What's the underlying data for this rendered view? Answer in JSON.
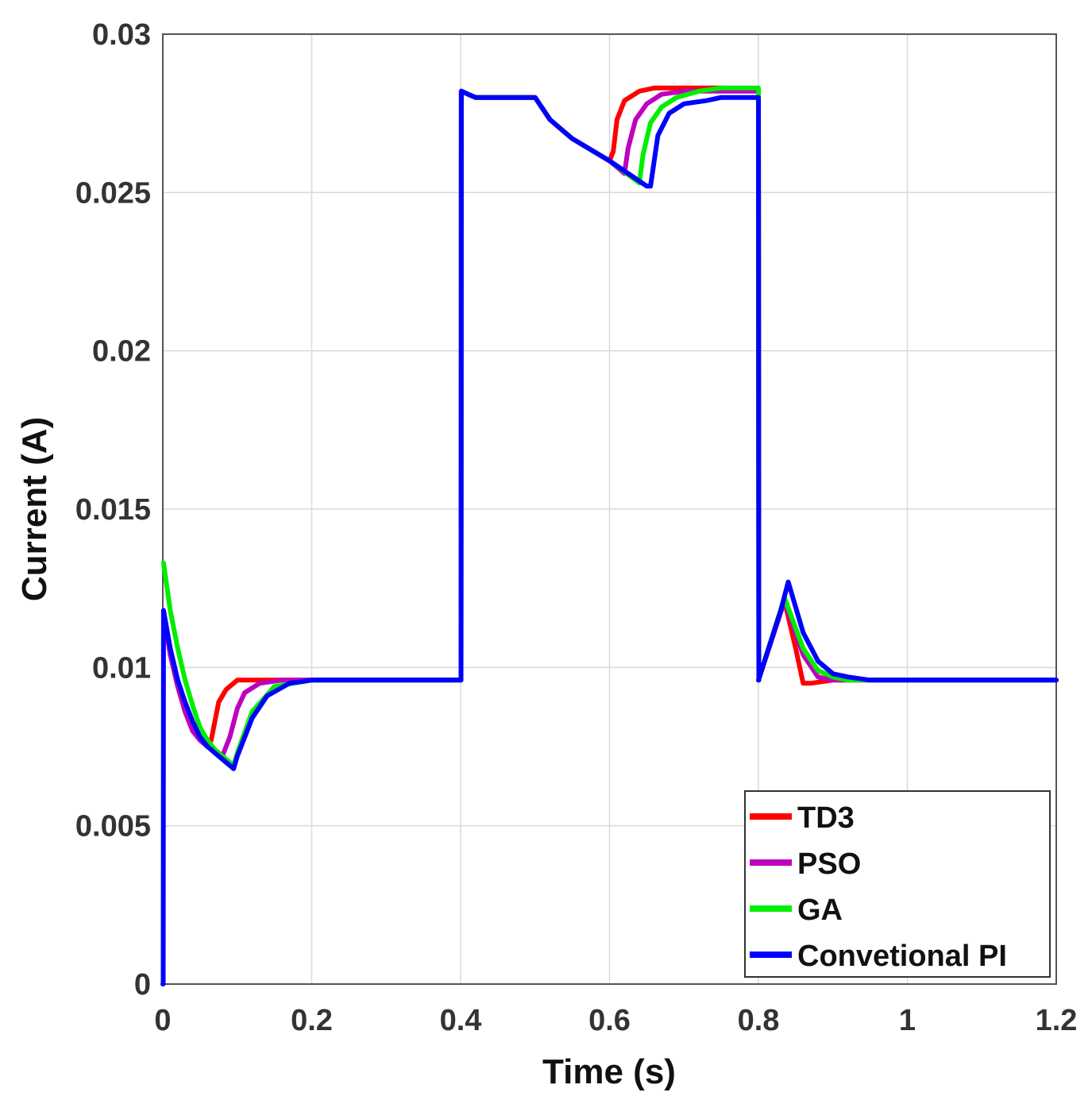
{
  "chart_data": {
    "type": "line",
    "title": "",
    "xlabel": "Time (s)",
    "ylabel": "Current (A)",
    "xlim": [
      0,
      1.2
    ],
    "ylim": [
      0,
      0.03
    ],
    "xticks": [
      0,
      0.2,
      0.4,
      0.6,
      0.8,
      1,
      1.2
    ],
    "xtick_labels": [
      "0",
      "0.2",
      "0.4",
      "0.6",
      "0.8",
      "1",
      "1.2"
    ],
    "yticks": [
      0,
      0.005,
      0.01,
      0.015,
      0.02,
      0.025,
      0.03
    ],
    "ytick_labels": [
      "0",
      "0.005",
      "0.01",
      "0.015",
      "0.02",
      "0.025",
      "0.03"
    ],
    "grid": true,
    "legend_position": "bottom-right",
    "series": [
      {
        "name": "TD3",
        "color": "#ff0000",
        "x": [
          0.001,
          0.01,
          0.02,
          0.03,
          0.04,
          0.05,
          0.06,
          0.065,
          0.075,
          0.085,
          0.1,
          0.12,
          0.15,
          0.2,
          0.4,
          0.4005,
          0.401,
          0.42,
          0.5,
          0.52,
          0.55,
          0.6,
          0.605,
          0.61,
          0.62,
          0.64,
          0.66,
          0.7,
          0.75,
          0.8,
          0.8005,
          0.8,
          0.835,
          0.85,
          0.86,
          0.87,
          0.9,
          1.0,
          1.2
        ],
        "y": [
          0.0118,
          0.0104,
          0.0094,
          0.0086,
          0.008,
          0.0077,
          0.0075,
          0.0077,
          0.0089,
          0.0093,
          0.0096,
          0.0096,
          0.0096,
          0.0096,
          0.0096,
          0.0096,
          0.0282,
          0.028,
          0.028,
          0.0273,
          0.0267,
          0.026,
          0.0263,
          0.0273,
          0.0279,
          0.0282,
          0.0283,
          0.0283,
          0.0283,
          0.0282,
          0.0096,
          0.0096,
          0.0121,
          0.0106,
          0.0095,
          0.0095,
          0.0096,
          0.0096,
          0.0096
        ]
      },
      {
        "name": "PSO",
        "color": "#bf00bf",
        "x": [
          0.001,
          0.01,
          0.02,
          0.03,
          0.04,
          0.05,
          0.06,
          0.07,
          0.08,
          0.09,
          0.1,
          0.11,
          0.13,
          0.16,
          0.2,
          0.4,
          0.4005,
          0.401,
          0.42,
          0.5,
          0.52,
          0.55,
          0.6,
          0.62,
          0.625,
          0.635,
          0.65,
          0.67,
          0.7,
          0.75,
          0.8,
          0.8005,
          0.8,
          0.835,
          0.86,
          0.88,
          0.9,
          1.0,
          1.2
        ],
        "y": [
          0.0118,
          0.0104,
          0.0094,
          0.0086,
          0.008,
          0.0077,
          0.0075,
          0.0074,
          0.0072,
          0.0078,
          0.0087,
          0.0092,
          0.0095,
          0.0096,
          0.0096,
          0.0096,
          0.0096,
          0.0282,
          0.028,
          0.028,
          0.0273,
          0.0267,
          0.026,
          0.0256,
          0.0264,
          0.0273,
          0.0278,
          0.0281,
          0.0282,
          0.0282,
          0.0282,
          0.0096,
          0.0096,
          0.0121,
          0.0104,
          0.0097,
          0.0096,
          0.0096,
          0.0096
        ]
      },
      {
        "name": "GA",
        "color": "#00ee00",
        "x": [
          0.001,
          0.01,
          0.02,
          0.03,
          0.04,
          0.05,
          0.06,
          0.07,
          0.08,
          0.09,
          0.095,
          0.1,
          0.12,
          0.15,
          0.2,
          0.4,
          0.4005,
          0.401,
          0.42,
          0.5,
          0.52,
          0.55,
          0.6,
          0.64,
          0.645,
          0.655,
          0.67,
          0.69,
          0.72,
          0.75,
          0.8,
          0.8005,
          0.8,
          0.835,
          0.86,
          0.88,
          0.9,
          0.92,
          1.0,
          1.2
        ],
        "y": [
          0.0133,
          0.0118,
          0.0106,
          0.0096,
          0.0088,
          0.0081,
          0.0077,
          0.0074,
          0.0072,
          0.007,
          0.0069,
          0.0073,
          0.0086,
          0.0094,
          0.0096,
          0.0096,
          0.0096,
          0.0282,
          0.028,
          0.028,
          0.0273,
          0.0267,
          0.026,
          0.0253,
          0.0262,
          0.0272,
          0.0277,
          0.028,
          0.0282,
          0.0283,
          0.0283,
          0.0096,
          0.0096,
          0.0122,
          0.0106,
          0.0099,
          0.0097,
          0.0096,
          0.0096,
          0.0096
        ]
      },
      {
        "name": "Convetional PI",
        "color": "#0000ff",
        "x": [
          0.0,
          0.0005,
          0.001,
          0.01,
          0.02,
          0.03,
          0.04,
          0.05,
          0.06,
          0.07,
          0.08,
          0.09,
          0.095,
          0.1,
          0.12,
          0.14,
          0.17,
          0.2,
          0.4,
          0.4005,
          0.401,
          0.41,
          0.42,
          0.5,
          0.52,
          0.55,
          0.6,
          0.65,
          0.655,
          0.665,
          0.68,
          0.7,
          0.73,
          0.75,
          0.8,
          0.8005,
          0.8,
          0.83,
          0.84,
          0.86,
          0.88,
          0.9,
          0.92,
          0.95,
          1.0,
          1.2
        ],
        "y": [
          0.0,
          0.0,
          0.0118,
          0.0106,
          0.0096,
          0.0089,
          0.0083,
          0.0078,
          0.0075,
          0.0073,
          0.0071,
          0.0069,
          0.0068,
          0.0072,
          0.0084,
          0.0091,
          0.0095,
          0.0096,
          0.0096,
          0.0096,
          0.0282,
          0.0281,
          0.028,
          0.028,
          0.0273,
          0.0267,
          0.026,
          0.0252,
          0.0252,
          0.0268,
          0.0275,
          0.0278,
          0.0279,
          0.028,
          0.028,
          0.0096,
          0.0096,
          0.0118,
          0.0127,
          0.0111,
          0.0102,
          0.0098,
          0.0097,
          0.0096,
          0.0096,
          0.0096
        ]
      }
    ]
  }
}
